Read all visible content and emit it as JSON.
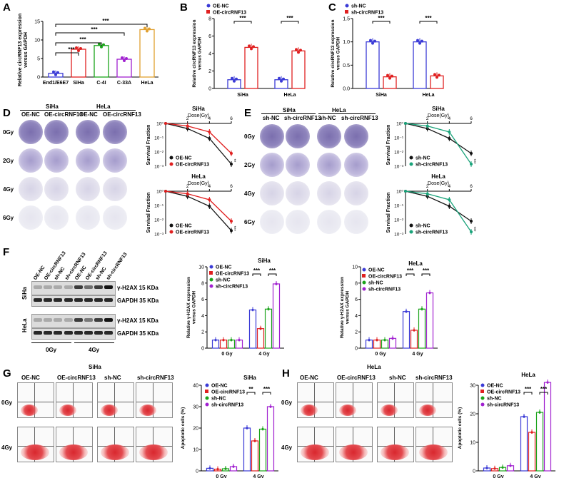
{
  "panels": {
    "A": {
      "letter": "A",
      "ylabel": "Relative circRNF13 expression\nversus GAPDH",
      "sig": [
        "***",
        "***",
        "***",
        "***"
      ],
      "categories": [
        "End1/E6E7",
        "SiHa",
        "C-4I",
        "C-33A",
        "HeLa"
      ],
      "yticks": [
        "0",
        "5",
        "10",
        "15"
      ],
      "values": [
        1.0,
        7.5,
        8.5,
        4.8,
        12.8
      ],
      "colors": [
        "#3a3ad6",
        "#e02020",
        "#1aa31a",
        "#a020d0",
        "#e0a030"
      ]
    },
    "B": {
      "letter": "B",
      "legend": [
        "OE-NC",
        "OE-circRNF13"
      ],
      "ylabel": "Relative circRNF13 expression\nversus GAPDH",
      "yticks": [
        "0",
        "2",
        "4",
        "6",
        "8"
      ],
      "groups": [
        "SiHa",
        "HeLa"
      ],
      "sig": [
        "***",
        "***"
      ],
      "values": [
        [
          1.0,
          4.7
        ],
        [
          1.0,
          4.3
        ]
      ]
    },
    "C": {
      "letter": "C",
      "legend": [
        "sh-NC",
        "sh-circRNF13"
      ],
      "ylabel": "Relative circRNF13 expression\nversus GAPDH",
      "yticks": [
        "0.0",
        "0.5",
        "1.0",
        "1.5"
      ],
      "groups": [
        "SiHa",
        "HeLa"
      ],
      "sig": [
        "***",
        "***"
      ],
      "values": [
        [
          1.0,
          0.25
        ],
        [
          1.0,
          0.27
        ]
      ]
    },
    "D": {
      "letter": "D",
      "cell_headers": [
        "SiHa",
        "HeLa"
      ],
      "col_headers": [
        "OE-NC",
        "OE-circRNF13",
        "OE-NC",
        "OE-circRNF13"
      ],
      "row_labels": [
        "0Gy",
        "2Gy",
        "4Gy",
        "6Gy"
      ],
      "curves": [
        {
          "title": "SiHa",
          "xlabel": "Dose(Gy)",
          "xticks": [
            "2",
            "4",
            "6"
          ],
          "yticks": [
            "10⁰",
            "10⁻¹",
            "10⁻²",
            "10⁻³"
          ],
          "ylabel": "Survival Fraction",
          "legend": [
            "OE-NC",
            "OE-circRNF13"
          ],
          "sig": "**"
        },
        {
          "title": "HeLa",
          "xlabel": "Dose(Gy)",
          "xticks": [
            "2",
            "4",
            "6"
          ],
          "yticks": [
            "10⁰",
            "10⁻¹",
            "10⁻²",
            "10⁻³"
          ],
          "ylabel": "Survival Fraction",
          "legend": [
            "OE-NC",
            "OE-circRNF13"
          ],
          "sig": "***"
        }
      ]
    },
    "E": {
      "letter": "E",
      "cell_headers": [
        "SiHa",
        "HeLa"
      ],
      "col_headers": [
        "sh-NC",
        "sh-circRNF13",
        "sh-NC",
        "sh-circRNF13"
      ],
      "row_labels": [
        "0Gy",
        "2Gy",
        "4Gy",
        "6Gy"
      ],
      "curves": [
        {
          "title": "SiHa",
          "xlabel": "Dose(Gy)",
          "xticks": [
            "2",
            "4",
            "6"
          ],
          "yticks": [
            "10⁰",
            "10⁻¹",
            "10⁻²",
            "10⁻³"
          ],
          "ylabel": "Survival Fraction",
          "legend": [
            "sh-NC",
            "sh-circRNF13"
          ],
          "sig": "***"
        },
        {
          "title": "HeLa",
          "xlabel": "Dose(Gy)",
          "xticks": [
            "2",
            "4",
            "6"
          ],
          "yticks": [
            "10⁰",
            "10⁻¹",
            "10⁻²",
            "10⁻³"
          ],
          "ylabel": "Survival Fraction",
          "legend": [
            "sh-NC",
            "sh-circRNF13"
          ],
          "sig": "***"
        }
      ]
    },
    "F": {
      "letter": "F",
      "lanes": [
        "OE-NC",
        "OE-circRNF13",
        "sh-NC",
        "sh-circRNF13",
        "OE-NC",
        "OE-circRNF13",
        "sh-NC",
        "sh-circRNF13"
      ],
      "blot_rows": [
        "SiHa",
        "HeLa"
      ],
      "band_labels": [
        "γ-H2AX 15 KDa",
        "GAPDH 35 KDa",
        "γ-H2AX 15 KDa",
        "GAPDH 35 KDa"
      ],
      "dose_labels": [
        "0Gy",
        "4Gy"
      ],
      "charts": [
        {
          "title": "SiHa",
          "legend": [
            "OE-NC",
            "OE-circRNF13",
            "sh-NC",
            "sh-circRNF13"
          ],
          "ylabel": "Relative γ-H2AX expression\nversus GAPDH",
          "yticks": [
            "0",
            "2",
            "4",
            "6",
            "8",
            "10"
          ],
          "groups": [
            "0 Gy",
            "4 Gy"
          ],
          "sig": [
            "***",
            "***"
          ],
          "values": [
            [
              1.0,
              1.0,
              1.0,
              1.0
            ],
            [
              4.7,
              2.4,
              4.8,
              7.9
            ]
          ]
        },
        {
          "title": "HeLa",
          "legend": [
            "OE-NC",
            "OE-circRNF13",
            "sh-NC",
            "sh-circRNF13"
          ],
          "ylabel": "Relative γ-H2AX expression\nversus GAPDH",
          "yticks": [
            "0",
            "2",
            "4",
            "6",
            "8",
            "10"
          ],
          "groups": [
            "0 Gy",
            "4 Gy"
          ],
          "sig": [
            "***",
            "***"
          ],
          "values": [
            [
              1.0,
              1.0,
              1.0,
              1.2
            ],
            [
              4.5,
              2.2,
              4.8,
              6.8
            ]
          ]
        }
      ]
    },
    "G": {
      "letter": "G",
      "header": "SiHa",
      "col_headers": [
        "OE-NC",
        "OE-circRNF13",
        "sh-NC",
        "sh-circRNF13"
      ],
      "row_labels": [
        "0Gy",
        "4Gy"
      ],
      "chart": {
        "title": "SiHa",
        "legend": [
          "OE-NC",
          "OE-circRNF13",
          "sh-NC",
          "sh-circRNF13"
        ],
        "ylabel": "Apoptotic cells (%)",
        "yticks": [
          "0",
          "10",
          "20",
          "30",
          "40"
        ],
        "groups": [
          "0 Gy",
          "4 Gy"
        ],
        "sig": [
          "**",
          "***"
        ],
        "values": [
          [
            1.2,
            0.8,
            1.0,
            2.0
          ],
          [
            20.0,
            14.0,
            19.5,
            30.0
          ]
        ]
      }
    },
    "H": {
      "letter": "H",
      "header": "HeLa",
      "col_headers": [
        "OE-NC",
        "OE-circRNF13",
        "sh-NC",
        "sh-circRNF13"
      ],
      "row_labels": [
        "0Gy",
        "4Gy"
      ],
      "chart": {
        "title": "HeLa",
        "legend": [
          "OE-NC",
          "OE-circRNF13",
          "sh-NC",
          "sh-circRNF13"
        ],
        "ylabel": "Apoptotic cells (%)",
        "yticks": [
          "0",
          "10",
          "20",
          "30"
        ],
        "groups": [
          "0 Gy",
          "4 Gy"
        ],
        "sig": [
          "***",
          "***"
        ],
        "values": [
          [
            1.0,
            0.8,
            1.2,
            1.8
          ],
          [
            19.0,
            13.5,
            20.5,
            31.0
          ]
        ]
      }
    }
  },
  "colors": {
    "blue": "#3a3ad6",
    "red": "#e02020",
    "green": "#1aa31a",
    "purple": "#a020d0",
    "orange": "#e0a030",
    "teal": "#1aa37a",
    "black": "#111111"
  }
}
